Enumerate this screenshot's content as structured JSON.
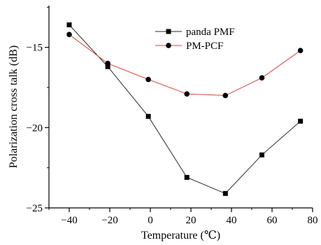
{
  "chart_data": {
    "type": "line",
    "title": "",
    "xlabel": "Temperature (℃)",
    "ylabel": "Polarization cross talk (dB)",
    "xlim": [
      -50,
      80
    ],
    "ylim": [
      -25,
      -12.4
    ],
    "xticks": [
      -40,
      -20,
      0,
      20,
      40,
      60,
      80
    ],
    "yticks": [
      -25,
      -20,
      -15
    ],
    "x_tick_labels": [
      "−40",
      "−20",
      "0",
      "20",
      "40",
      "60",
      "80"
    ],
    "y_tick_labels": [
      "−25",
      "−20",
      "−15"
    ],
    "grid": false,
    "legend_position": "top-right",
    "series": [
      {
        "name": "panda PMF",
        "marker": "square",
        "color": "#2a2a2a",
        "x": [
          -40,
          -21,
          -1,
          18,
          37,
          55,
          74
        ],
        "y": [
          -13.6,
          -16.2,
          -19.3,
          -23.1,
          -24.1,
          -21.7,
          -19.6
        ]
      },
      {
        "name": "PM-PCF",
        "marker": "circle",
        "color": "#d9463c",
        "x": [
          -40,
          -21,
          -1,
          18,
          37,
          55,
          74
        ],
        "y": [
          -14.2,
          -16.0,
          -17.0,
          -17.9,
          -18.0,
          -16.9,
          -15.2
        ]
      }
    ]
  }
}
